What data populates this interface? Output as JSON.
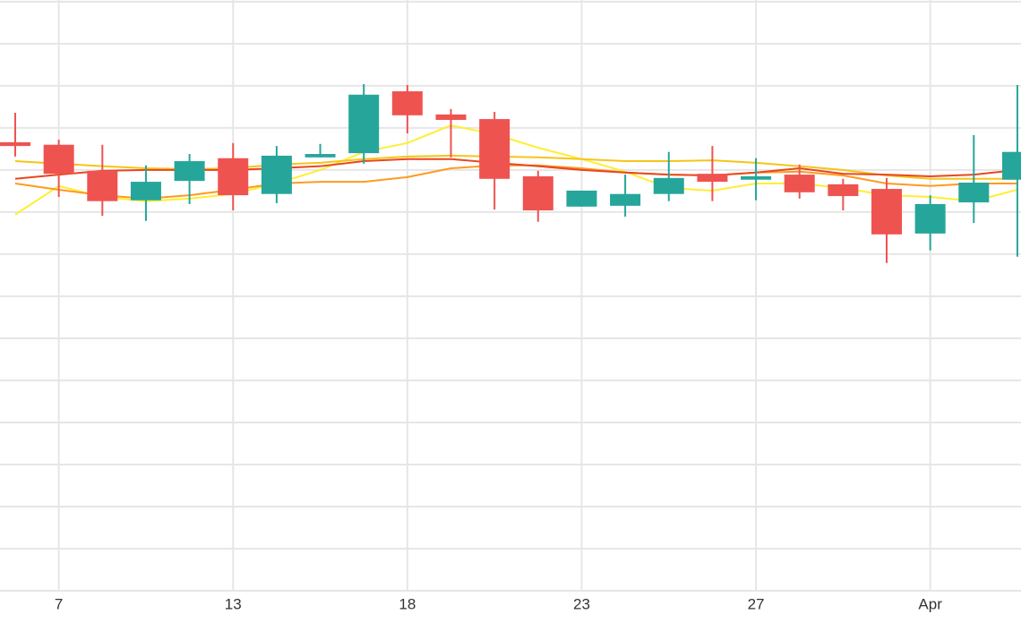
{
  "chart_data": {
    "type": "candlestick",
    "categories": [
      null,
      "7",
      null,
      null,
      null,
      "13",
      null,
      null,
      null,
      "18",
      null,
      null,
      null,
      "23",
      null,
      null,
      null,
      "27",
      null,
      null,
      null,
      "Apr",
      null,
      null
    ],
    "open": [
      10.66,
      10.6,
      9.98,
      9.28,
      9.74,
      10.28,
      9.43,
      10.3,
      10.4,
      11.87,
      11.32,
      11.21,
      9.85,
      9.13,
      9.15,
      9.43,
      9.91,
      9.77,
      9.89,
      9.66,
      9.55,
      8.49,
      9.23,
      9.77
    ],
    "high": [
      11.36,
      10.72,
      10.6,
      10.11,
      10.38,
      10.64,
      10.57,
      10.62,
      12.04,
      12.02,
      11.45,
      11.38,
      9.98,
      9.51,
      9.89,
      10.43,
      10.57,
      10.28,
      10.13,
      9.79,
      9.81,
      9.4,
      10.83,
      12.02
    ],
    "low": [
      10.32,
      9.36,
      8.91,
      8.79,
      9.19,
      9.04,
      9.21,
      10.3,
      10.15,
      10.87,
      10.3,
      9.06,
      8.77,
      9.13,
      8.89,
      9.26,
      9.26,
      9.28,
      9.32,
      9.04,
      7.79,
      8.09,
      8.74,
      7.94
    ],
    "close": [
      10.57,
      9.91,
      9.26,
      9.72,
      10.21,
      9.4,
      10.34,
      10.38,
      11.79,
      11.3,
      11.19,
      9.79,
      9.04,
      9.51,
      9.43,
      9.81,
      9.72,
      9.85,
      9.47,
      9.38,
      8.47,
      9.19,
      9.7,
      10.43
    ],
    "up_color": "#26a69a",
    "down_color": "#ef5350",
    "lines": [
      {
        "color": "#ffee33",
        "values": [
          8.94,
          9.62,
          9.36,
          9.26,
          9.32,
          9.43,
          9.68,
          10.0,
          10.43,
          10.64,
          11.06,
          10.85,
          10.53,
          10.26,
          9.96,
          9.57,
          9.51,
          9.68,
          9.68,
          9.57,
          9.4,
          9.36,
          9.26,
          9.53
        ]
      },
      {
        "color": "#f5c518",
        "values": [
          10.21,
          10.15,
          10.09,
          10.04,
          10.02,
          10.04,
          10.13,
          10.17,
          10.26,
          10.32,
          10.34,
          10.32,
          10.3,
          10.26,
          10.21,
          10.21,
          10.23,
          10.17,
          10.09,
          10.0,
          9.87,
          9.79,
          9.79,
          9.79
        ]
      },
      {
        "color": "#ff9a1f",
        "values": [
          9.68,
          9.53,
          9.4,
          9.32,
          9.4,
          9.53,
          9.68,
          9.72,
          9.72,
          9.83,
          10.04,
          10.11,
          10.11,
          10.04,
          9.94,
          9.89,
          9.87,
          9.94,
          9.96,
          9.87,
          9.68,
          9.62,
          9.68,
          9.68
        ]
      },
      {
        "color": "#e8471f",
        "values": [
          9.79,
          9.89,
          9.98,
          10.0,
          10.0,
          10.0,
          10.04,
          10.09,
          10.21,
          10.26,
          10.26,
          10.17,
          10.09,
          10.0,
          9.94,
          9.89,
          9.87,
          9.94,
          10.04,
          9.91,
          9.89,
          9.85,
          9.89,
          10.0
        ]
      }
    ],
    "ylim": [
      0,
      14.04
    ],
    "yticks": [
      0,
      1,
      2,
      3,
      4,
      5,
      6,
      7,
      8,
      9,
      10,
      11,
      12,
      13,
      14
    ],
    "grid": true
  }
}
